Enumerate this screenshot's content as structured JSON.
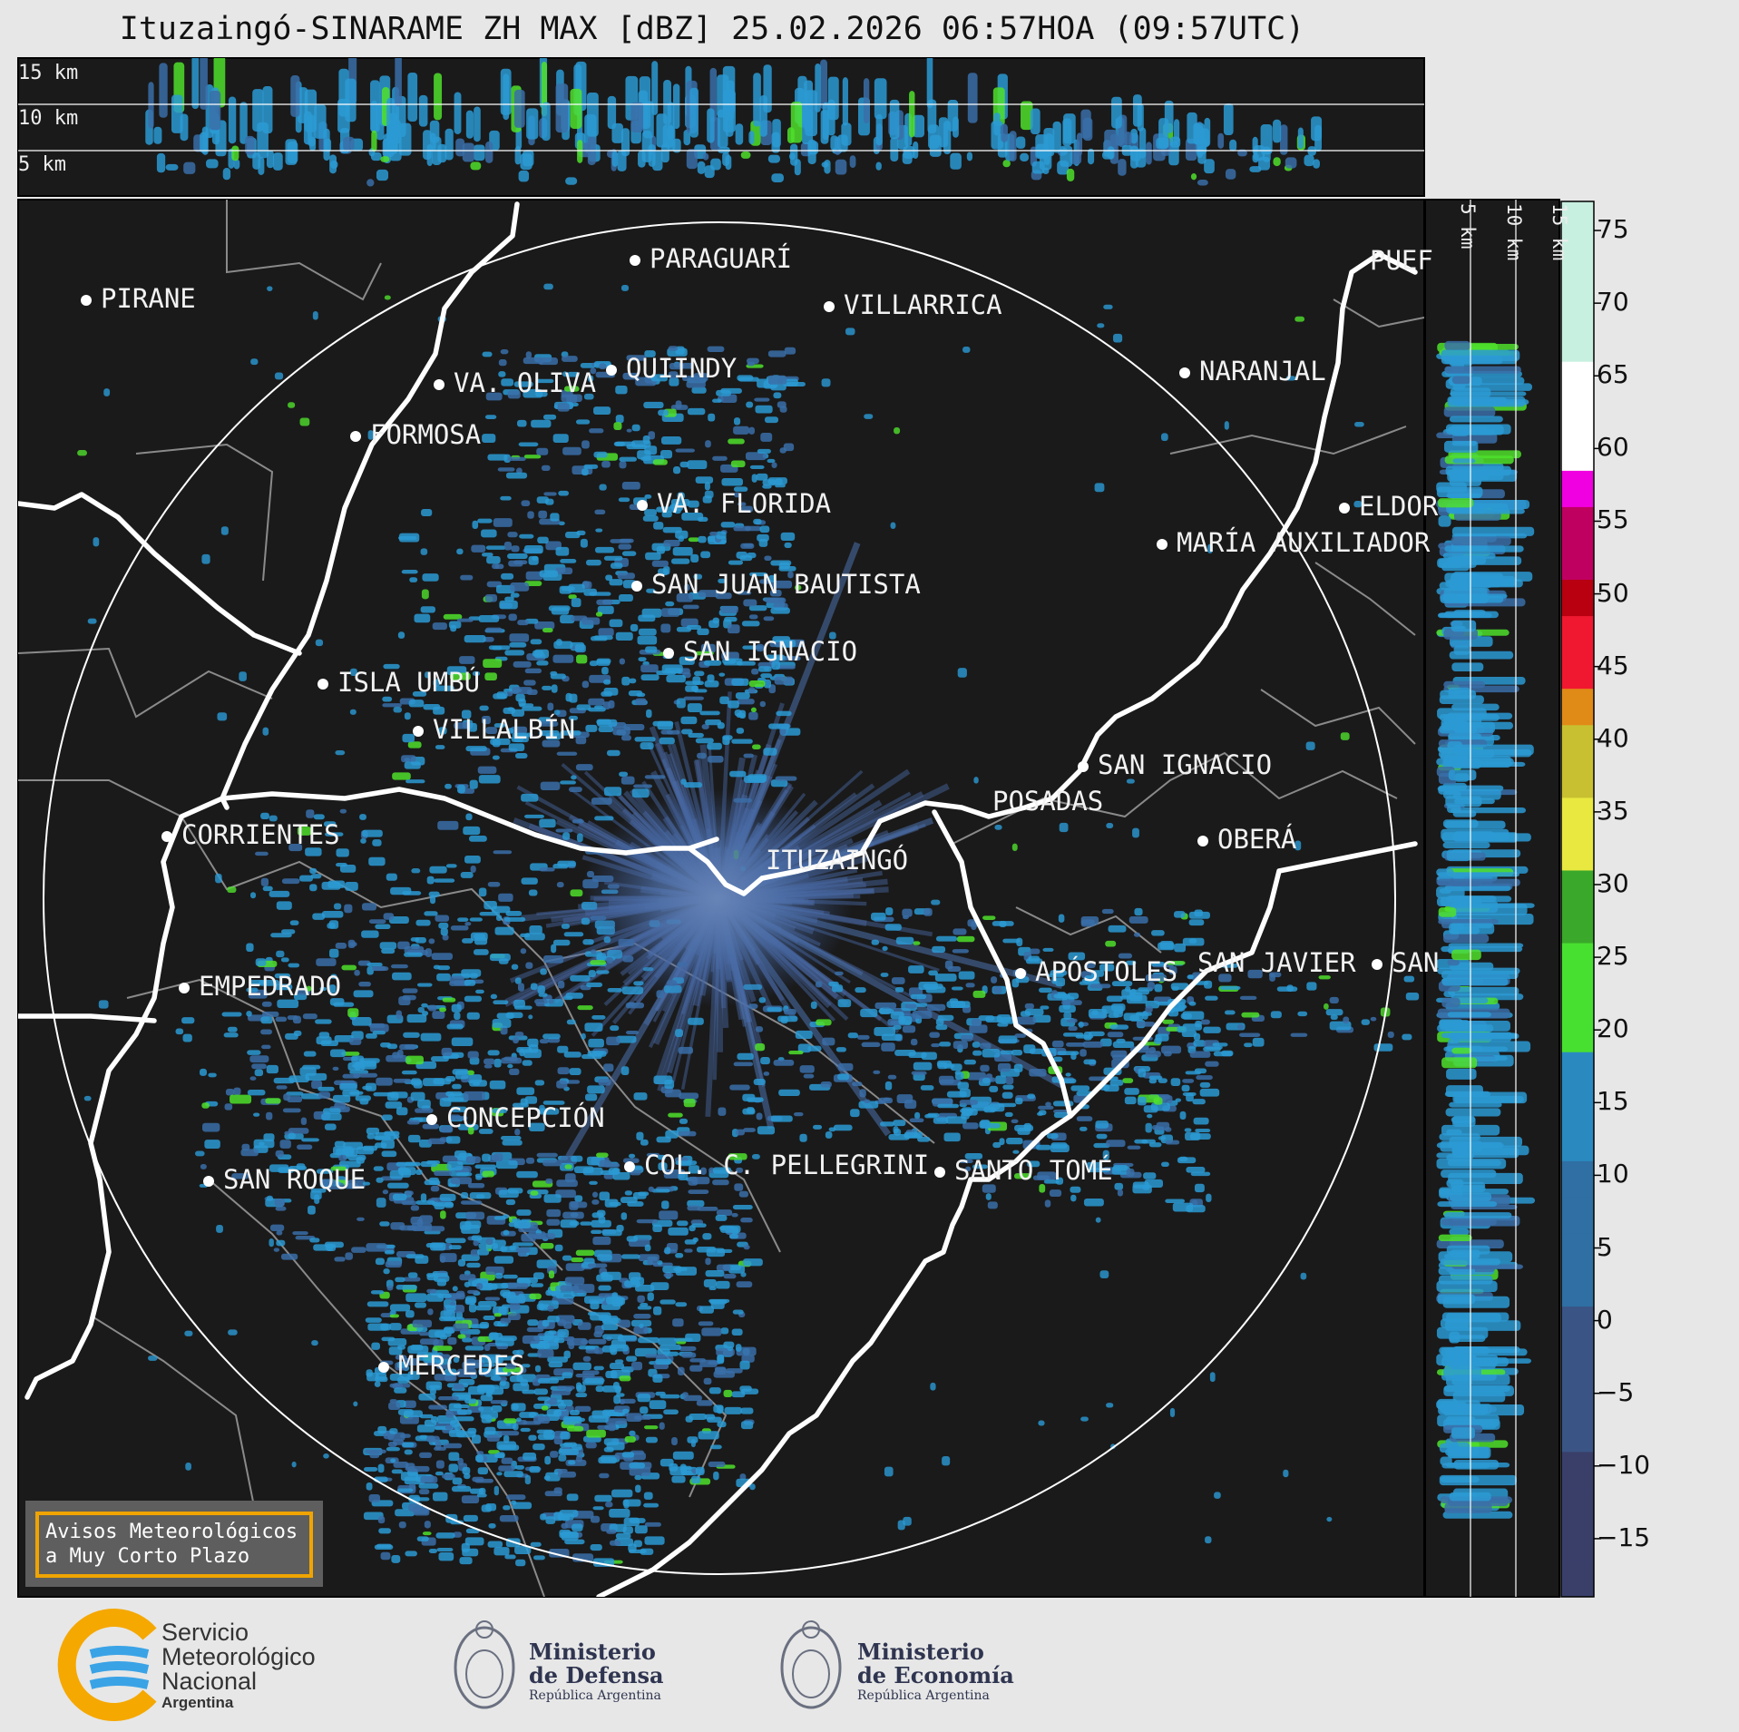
{
  "title": "Ituzaingó-SINARAME ZH MAX [dBZ] 25.02.2026 06:57HOA (09:57UTC)",
  "height_labels": {
    "h15": "15 km",
    "h10": "10 km",
    "h5": "5 km"
  },
  "cities": [
    {
      "name": "PARAGUARÍ"
    },
    {
      "name": "VILLARRICA"
    },
    {
      "name": "PIRANE"
    },
    {
      "name": "QUIINDY"
    },
    {
      "name": "VA. OLIVA"
    },
    {
      "name": "NARANJAL"
    },
    {
      "name": "FORMOSA"
    },
    {
      "name": "VA. FLORIDA"
    },
    {
      "name": "ELDOR"
    },
    {
      "name": "MARÍA AUXILIADOR"
    },
    {
      "name": "SAN JUAN BAUTISTA"
    },
    {
      "name": "SAN IGNACIO"
    },
    {
      "name": "ISLA UMBÚ"
    },
    {
      "name": "VILLALBÍN"
    },
    {
      "name": "SAN IGNACIO"
    },
    {
      "name": "POSADAS"
    },
    {
      "name": "CORRIENTES"
    },
    {
      "name": "ITUZAINGÓ"
    },
    {
      "name": "OBERÁ"
    },
    {
      "name": "APÓSTOLES"
    },
    {
      "name": "SAN JAVIER"
    },
    {
      "name": "SAN"
    },
    {
      "name": "EMPEDRADO"
    },
    {
      "name": "CONCEPCIÓN"
    },
    {
      "name": "COL. C. PELLEGRINI"
    },
    {
      "name": "SANTO TOMÉ"
    },
    {
      "name": "SAN ROQUE"
    },
    {
      "name": "MERCEDES"
    },
    {
      "name": "PUEF"
    }
  ],
  "colorbar": {
    "ticks": [
      "75",
      "70",
      "65",
      "60",
      "55",
      "50",
      "45",
      "40",
      "35",
      "30",
      "25",
      "20",
      "15",
      "10",
      "5",
      "0",
      "−5",
      "−10",
      "−15"
    ],
    "tick_values": [
      75,
      70,
      65,
      60,
      55,
      50,
      45,
      40,
      35,
      30,
      25,
      20,
      15,
      10,
      5,
      0,
      -5,
      -10,
      -15
    ],
    "range": [
      -19,
      77
    ],
    "stops": [
      {
        "v": -19,
        "c": "#3a3f6a"
      },
      {
        "v": -10,
        "c": "#3a5585"
      },
      {
        "v": 0,
        "c": "#2f6fa3"
      },
      {
        "v": 10,
        "c": "#2a8ac0"
      },
      {
        "v": 17.5,
        "c": "#2ab0e0"
      },
      {
        "v": 18,
        "c": "#48e030"
      },
      {
        "v": 25,
        "c": "#3aa82a"
      },
      {
        "v": 30,
        "c": "#246e1e"
      },
      {
        "v": 30.5,
        "c": "#e8e840"
      },
      {
        "v": 35,
        "c": "#c8c030"
      },
      {
        "v": 40,
        "c": "#e08a18"
      },
      {
        "v": 42.5,
        "c": "#f01830"
      },
      {
        "v": 47,
        "c": "#b80010"
      },
      {
        "v": 50,
        "c": "#c00060"
      },
      {
        "v": 55,
        "c": "#f000e0"
      },
      {
        "v": 58,
        "c": "#9a00a0"
      },
      {
        "v": 58.5,
        "c": "#ffffff"
      },
      {
        "v": 65,
        "c": "#c8f0e0"
      },
      {
        "v": 77,
        "c": "#80e0c0"
      }
    ]
  },
  "notice": {
    "line1": "Avisos Meteorológicos",
    "line2": "a Muy Corto Plazo"
  },
  "logos": {
    "smn": {
      "l1": "Servicio",
      "l2": "Meteorológico",
      "l3": "Nacional",
      "l4": "Argentina"
    },
    "defensa": {
      "l1": "Ministerio",
      "l2": "de Defensa",
      "l3": "República Argentina"
    },
    "economia": {
      "l1": "Ministerio",
      "l2": "de Economía",
      "l3": "República Argentina"
    }
  },
  "colors": {
    "map_bg": "#1a1a1a",
    "river": "#ffffff",
    "border": "#8a8a8a",
    "echo_weak": "#3a6fa8",
    "echo_mid": "#2b9ad4",
    "echo_strong": "#4fe02c",
    "notice_frame": "#f0a400"
  }
}
